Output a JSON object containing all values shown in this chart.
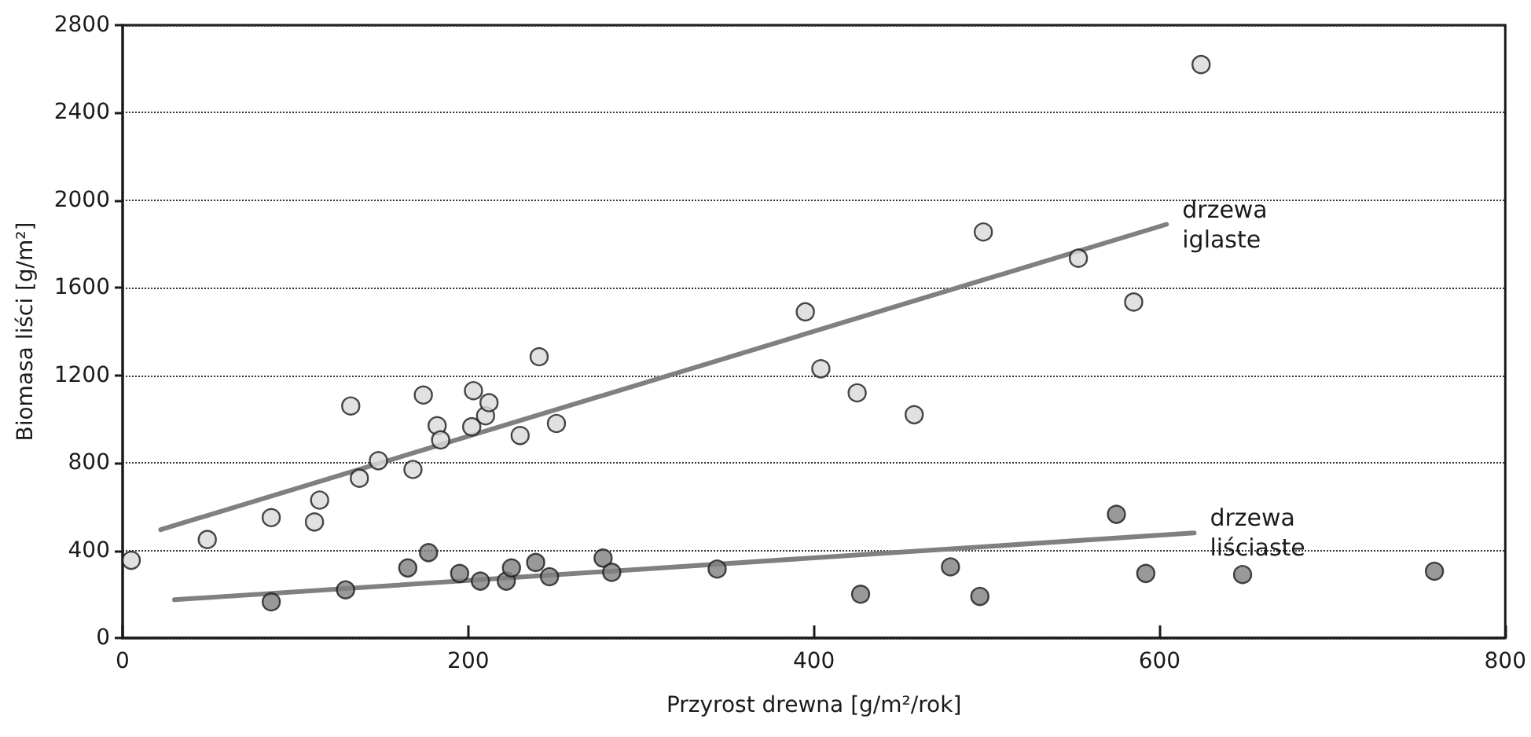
{
  "chart_data": {
    "type": "scatter",
    "xlabel": "Przyrost drewna [g/m²/rok]",
    "ylabel": "Biomasa liści [g/m²]",
    "xlim": [
      0,
      800
    ],
    "xticks": [
      0,
      200,
      400,
      600,
      800
    ],
    "ylim": [
      0,
      2800
    ],
    "yticks": [
      0,
      400,
      800,
      1200,
      1600,
      2000,
      2400,
      2800
    ],
    "grid": "y",
    "series": [
      {
        "color": "#d9d9d9",
        "marker": "circle",
        "x": [
          5,
          49,
          86,
          111,
          114,
          132,
          137,
          148,
          168,
          174,
          182,
          184,
          202,
          203,
          210,
          212,
          230,
          241,
          251,
          395,
          404,
          425,
          458,
          498,
          553,
          585,
          624
        ],
        "values": [
          355,
          450,
          550,
          530,
          630,
          1060,
          730,
          810,
          770,
          1110,
          970,
          905,
          965,
          1130,
          1015,
          1075,
          925,
          1285,
          980,
          1490,
          1230,
          1120,
          1020,
          1855,
          1735,
          1535,
          2620
        ]
      },
      {
        "color": "#7f7f7f",
        "marker": "circle",
        "x": [
          86,
          129,
          165,
          177,
          195,
          207,
          222,
          225,
          239,
          247,
          278,
          283,
          344,
          427,
          479,
          496,
          575,
          592,
          648,
          759
        ],
        "values": [
          165,
          220,
          320,
          390,
          295,
          260,
          260,
          320,
          345,
          280,
          365,
          300,
          315,
          200,
          325,
          190,
          565,
          295,
          290,
          305
        ]
      },
      {
        "type": "line",
        "name": "drzewa iglaste",
        "marker": "none",
        "color": "#808080",
        "x": [
          22,
          604
        ],
        "values": [
          495,
          1890
        ]
      },
      {
        "type": "line",
        "name": "drzewa liściaste",
        "marker": "none",
        "color": "#808080",
        "x": [
          30,
          620
        ],
        "values": [
          175,
          480
        ]
      }
    ]
  }
}
